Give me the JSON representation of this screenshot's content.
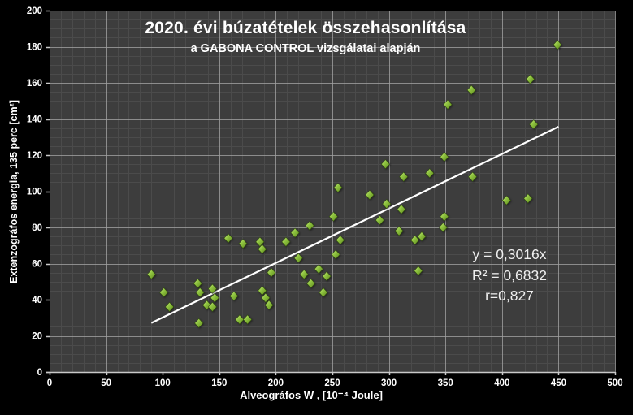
{
  "chart_data": {
    "type": "scatter",
    "title": "2020. évi búzatételek összehasonlítása",
    "subtitle": "a GABONA CONTROL vizsgálatai alapján",
    "xlabel": "Alveográfos W , [10⁻⁴ Joule]",
    "ylabel": "Extenzográfos energia, 135 perc [cm²]",
    "xlim": [
      0,
      500
    ],
    "ylim": [
      0,
      200
    ],
    "xticks": [
      0,
      50,
      100,
      150,
      200,
      250,
      300,
      350,
      400,
      450,
      500
    ],
    "yticks": [
      0,
      20,
      40,
      60,
      80,
      100,
      120,
      140,
      160,
      180,
      200
    ],
    "x_minor_step": 10,
    "y_minor_step": 5,
    "grid": "major-and-minor",
    "legend": "none",
    "points": [
      [
        90,
        54
      ],
      [
        101,
        44
      ],
      [
        106,
        36
      ],
      [
        131,
        49
      ],
      [
        133,
        44
      ],
      [
        144,
        46
      ],
      [
        146,
        41
      ],
      [
        139,
        37
      ],
      [
        144,
        36
      ],
      [
        132,
        27
      ],
      [
        163,
        42
      ],
      [
        168,
        29
      ],
      [
        175,
        29
      ],
      [
        158,
        74
      ],
      [
        171,
        71
      ],
      [
        186,
        72
      ],
      [
        188,
        68
      ],
      [
        196,
        55
      ],
      [
        188,
        45
      ],
      [
        191,
        41
      ],
      [
        194,
        37
      ],
      [
        209,
        72
      ],
      [
        217,
        77
      ],
      [
        220,
        63
      ],
      [
        225,
        54
      ],
      [
        231,
        49
      ],
      [
        242,
        44
      ],
      [
        238,
        57
      ],
      [
        245,
        53
      ],
      [
        230,
        81
      ],
      [
        251,
        86
      ],
      [
        253,
        65
      ],
      [
        257,
        73
      ],
      [
        255,
        102
      ],
      [
        283,
        98
      ],
      [
        298,
        93
      ],
      [
        311,
        90
      ],
      [
        292,
        84
      ],
      [
        309,
        78
      ],
      [
        297,
        115
      ],
      [
        313,
        108
      ],
      [
        336,
        110
      ],
      [
        349,
        119
      ],
      [
        323,
        73
      ],
      [
        329,
        75
      ],
      [
        326,
        56
      ],
      [
        349,
        86
      ],
      [
        348,
        80
      ],
      [
        352,
        148
      ],
      [
        374,
        108
      ],
      [
        373,
        156
      ],
      [
        404,
        95
      ],
      [
        423,
        96
      ],
      [
        425,
        162
      ],
      [
        428,
        137
      ],
      [
        449,
        181
      ]
    ],
    "trendline": {
      "slope": 0.3016,
      "x_start": 90,
      "x_end": 450
    },
    "annotation": [
      "y = 0,3016x",
      "R² = 0,6832",
      "r=0,827"
    ],
    "colors": {
      "background": "#000000",
      "plot_background": "#3d3d3d",
      "grid_major": "#a0a0a0",
      "grid_minor": "#4b4b4b",
      "axis_line": "#c9c9c9",
      "marker": "#8fc43f",
      "marker_light": "#d7ec96",
      "marker_dark": "#5e871e",
      "trendline": "#ffffff",
      "text": "#ffffff"
    }
  }
}
